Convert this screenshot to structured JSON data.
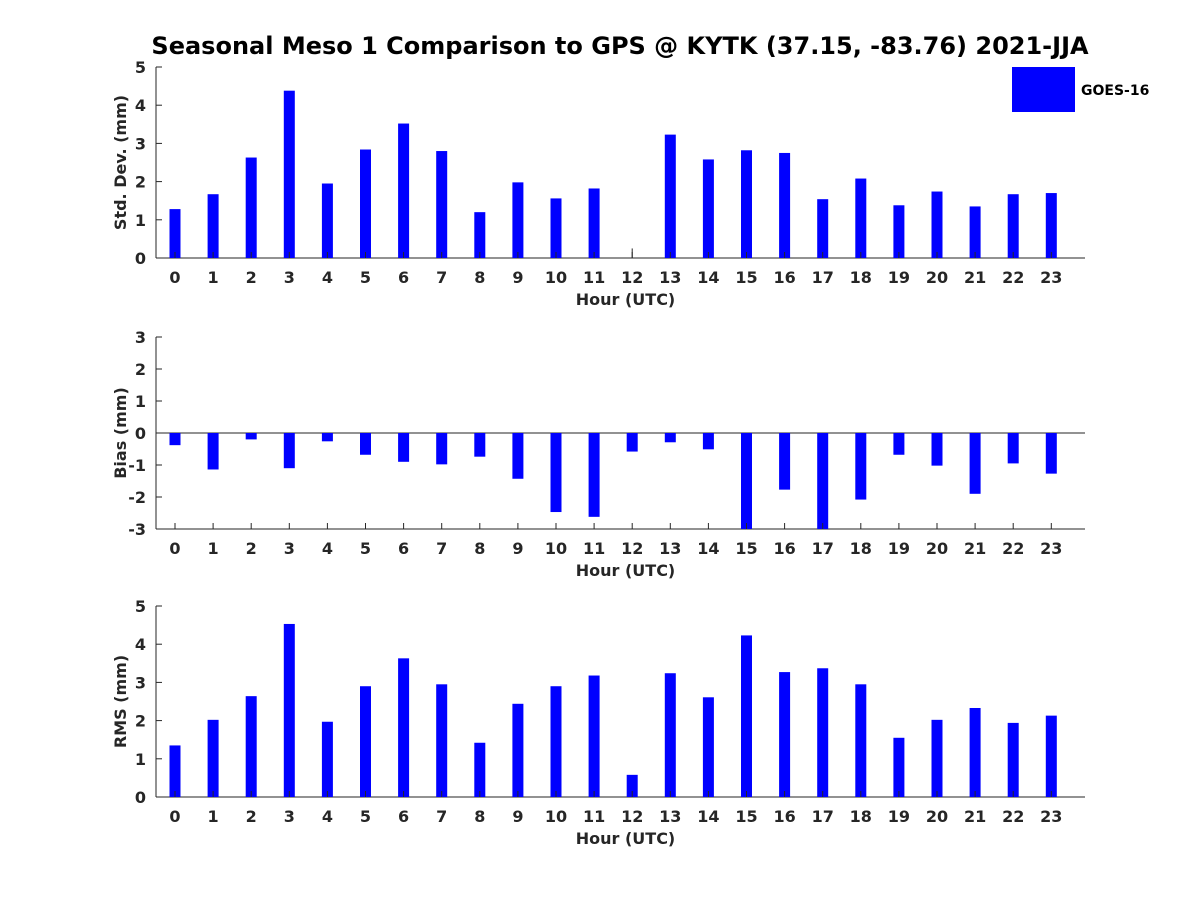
{
  "title": "Seasonal Meso 1 Comparison to GPS @ KYTK (37.15, -83.76) 2021-JJA",
  "legend": {
    "label": "GOES-16",
    "color": "#0000ff",
    "placement": "top-right"
  },
  "chart_data": [
    {
      "type": "bar",
      "xlabel": "Hour (UTC)",
      "ylabel": "Std. Dev. (mm)",
      "ylim": [
        0,
        5
      ],
      "yticks": [
        0,
        1,
        2,
        3,
        4,
        5
      ],
      "categories": [
        "0",
        "1",
        "2",
        "3",
        "4",
        "5",
        "6",
        "7",
        "8",
        "9",
        "10",
        "11",
        "12",
        "13",
        "14",
        "15",
        "16",
        "17",
        "18",
        "19",
        "20",
        "21",
        "22",
        "23"
      ],
      "series": [
        {
          "name": "GOES-16",
          "values": [
            1.28,
            1.67,
            2.63,
            4.38,
            1.95,
            2.84,
            3.52,
            2.8,
            1.2,
            1.98,
            1.56,
            1.82,
            0.25,
            3.23,
            2.58,
            2.82,
            2.75,
            1.54,
            2.08,
            1.38,
            1.74,
            1.35,
            1.67,
            1.7
          ]
        }
      ]
    },
    {
      "type": "bar",
      "xlabel": "Hour (UTC)",
      "ylabel": "Bias (mm)",
      "ylim": [
        -3,
        3
      ],
      "yticks": [
        -3,
        -2,
        -1,
        0,
        1,
        2,
        3
      ],
      "categories": [
        "0",
        "1",
        "2",
        "3",
        "4",
        "5",
        "6",
        "7",
        "8",
        "9",
        "10",
        "11",
        "12",
        "13",
        "14",
        "15",
        "16",
        "17",
        "18",
        "19",
        "20",
        "21",
        "22",
        "23"
      ],
      "series": [
        {
          "name": "GOES-16",
          "values": [
            -0.38,
            -1.14,
            -0.2,
            -1.1,
            -0.26,
            -0.68,
            -0.9,
            -0.98,
            -0.74,
            -1.43,
            -2.47,
            -2.62,
            -0.58,
            -0.29,
            -0.51,
            -3.3,
            -1.77,
            -3.3,
            -2.08,
            -0.68,
            -1.02,
            -1.9,
            -0.95,
            -1.27
          ]
        }
      ]
    },
    {
      "type": "bar",
      "xlabel": "Hour (UTC)",
      "ylabel": "RMS (mm)",
      "ylim": [
        0,
        5
      ],
      "yticks": [
        0,
        1,
        2,
        3,
        4,
        5
      ],
      "categories": [
        "0",
        "1",
        "2",
        "3",
        "4",
        "5",
        "6",
        "7",
        "8",
        "9",
        "10",
        "11",
        "12",
        "13",
        "14",
        "15",
        "16",
        "17",
        "18",
        "19",
        "20",
        "21",
        "22",
        "23"
      ],
      "series": [
        {
          "name": "GOES-16",
          "values": [
            1.35,
            2.02,
            2.64,
            4.53,
            1.97,
            2.9,
            3.63,
            2.95,
            1.42,
            2.44,
            2.9,
            3.18,
            0.58,
            3.24,
            2.61,
            4.23,
            3.27,
            3.37,
            2.95,
            1.55,
            2.02,
            2.33,
            1.94,
            2.13
          ]
        }
      ]
    }
  ]
}
